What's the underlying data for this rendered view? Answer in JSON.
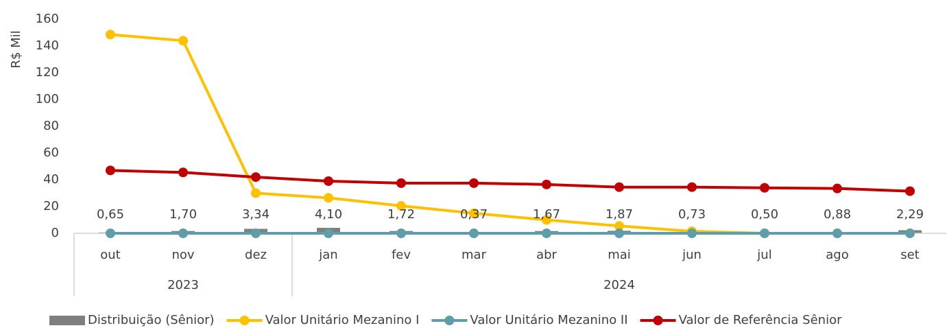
{
  "chart_data": {
    "type": "combo",
    "y_label": "R$ Mil",
    "categories": [
      "out",
      "nov",
      "dez",
      "jan",
      "fev",
      "mar",
      "abr",
      "mai",
      "jun",
      "jul",
      "ago",
      "set"
    ],
    "years": [
      "2023",
      "2023",
      "2023",
      "2024",
      "2024",
      "2024",
      "2024",
      "2024",
      "2024",
      "2024",
      "2024",
      "2024"
    ],
    "ylim": [
      0,
      160
    ],
    "yticks": [
      0,
      20,
      40,
      60,
      80,
      100,
      120,
      140,
      160
    ],
    "series": [
      {
        "name": "Distribuição (Sênior)",
        "kind": "bar",
        "color": "#7f7f7f",
        "values": [
          0.65,
          1.7,
          3.34,
          4.1,
          1.72,
          0.37,
          1.67,
          1.87,
          0.73,
          0.5,
          0.88,
          2.29
        ],
        "value_labels": [
          "0,65",
          "1,70",
          "3,34",
          "4,10",
          "1,72",
          "0,37",
          "1,67",
          "1,87",
          "0,73",
          "0,50",
          "0,88",
          "2,29"
        ]
      },
      {
        "name": "Valor Unitário Mezanino I",
        "kind": "line",
        "color": "#ffc000",
        "values": [
          148.5,
          144,
          30,
          26.5,
          20.5,
          15,
          10,
          5.5,
          1.5,
          0,
          0,
          0
        ]
      },
      {
        "name": "Valor Unitário Mezanino II",
        "kind": "line",
        "color": "#5f9ea8",
        "values": [
          0,
          0,
          0,
          0,
          0,
          0,
          0,
          0,
          0,
          0,
          0,
          0
        ]
      },
      {
        "name": "Valor de Referência Sênior",
        "kind": "line",
        "color": "#c00000",
        "values": [
          47,
          45.5,
          42,
          39,
          37.5,
          37.5,
          36.5,
          34.5,
          34.5,
          34,
          33.5,
          31.5
        ]
      }
    ]
  }
}
